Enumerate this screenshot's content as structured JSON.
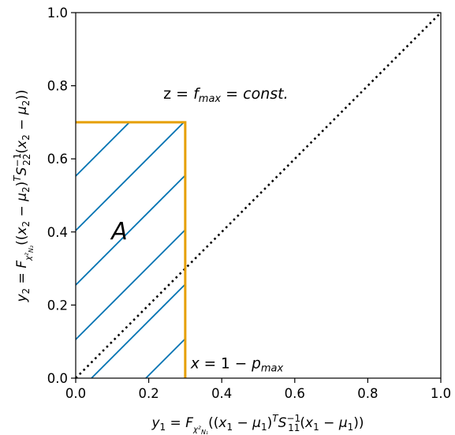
{
  "chart_data": {
    "type": "line",
    "xlim": [
      0,
      1
    ],
    "ylim": [
      0,
      1
    ],
    "x_ticks": [
      "0.0",
      "0.2",
      "0.4",
      "0.6",
      "0.8",
      "1.0"
    ],
    "y_ticks": [
      "0.0",
      "0.2",
      "0.4",
      "0.6",
      "0.8",
      "1.0"
    ],
    "xlabel": "y₁ = F_{χ²_{N₁}}((x₁ − μ₁)ᵀ S₁₁⁻¹ (x₁ − μ₁))",
    "ylabel": "y₂ = F_{χ²_{N₂}}((x₂ − μ₂)ᵀ S₂₂⁻¹ (x₂ − μ₂))",
    "grid": false,
    "colors": {
      "region": "#e69f00",
      "hatch": "#0072b2",
      "diagonal": "#000000"
    },
    "series": [
      {
        "style": "dotted",
        "x": [
          0,
          1
        ],
        "y": [
          0,
          1
        ]
      },
      {
        "style": "solid-orange",
        "x": [
          0,
          0.3,
          0.3
        ],
        "y": [
          0.7,
          0.7,
          0
        ]
      }
    ],
    "region": {
      "label": "A",
      "x": [
        0,
        0.3
      ],
      "y": [
        0,
        0.7
      ],
      "fill": "diagonal-hatch"
    },
    "annotations": {
      "z_label": "z = f_max = const.",
      "x_label": "x = 1 − p_max",
      "region_label": "A"
    }
  }
}
